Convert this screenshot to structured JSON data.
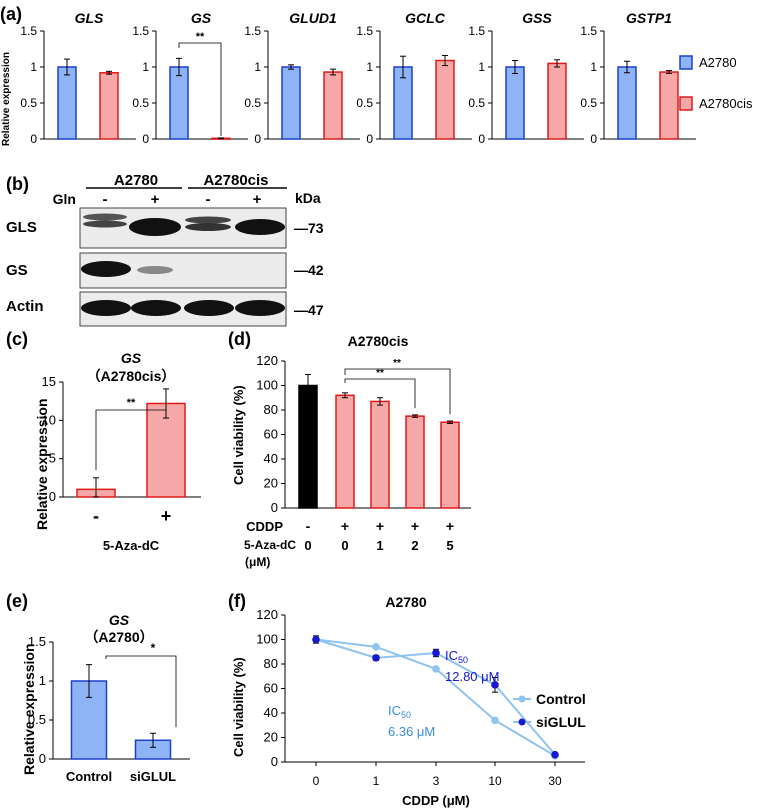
{
  "panel_labels": {
    "a": "(a)",
    "b": "(b)",
    "c": "(c)",
    "d": "(d)",
    "e": "(e)",
    "f": "(f)"
  },
  "colors": {
    "blue_fill": "#8fb4f5",
    "blue_edge": "#1f3fcf",
    "red_fill": "#f6a8a8",
    "red_edge": "#e01a1a",
    "black": "#000000",
    "control_line": "#8fc3f0",
    "siglul_line": "#1818d0"
  },
  "panel_a": {
    "ylabel": "Relative expression",
    "legend": [
      {
        "name": "A2780",
        "color": "blue"
      },
      {
        "name": "A2780cis",
        "color": "red"
      }
    ],
    "significance_gs": "**"
  },
  "panel_b": {
    "col_groups": [
      "A2780",
      "A2780cis"
    ],
    "gln_label": "Gln",
    "lane_signs": [
      "-",
      "+",
      "-",
      "+"
    ],
    "kda_label": "kDa",
    "rows": [
      {
        "name": "GLS",
        "kda": "—73"
      },
      {
        "name": "GS",
        "kda": "—42"
      },
      {
        "name": "Actin",
        "kda": "—47"
      }
    ]
  },
  "panel_c": {
    "title_gene": "GS",
    "title_line": "（A2780cis）",
    "significance": "**"
  },
  "panel_d": {
    "title": "A2780cis",
    "cddp_label": "CDDP",
    "aza_label": "5-Aza-dC",
    "unit_label": "(μM)",
    "cddp_signs": [
      "-",
      "+",
      "+",
      "+",
      "+"
    ],
    "aza_doses": [
      "0",
      "0",
      "1",
      "2",
      "5"
    ],
    "significance": [
      "**",
      "**"
    ]
  },
  "panel_e": {
    "title_gene": "GS",
    "title_line": "（A2780）",
    "significance": "*"
  },
  "panel_f": {
    "title": "A2780",
    "ic50_siglul_label": "IC50",
    "ic50_siglul_value": "12.80 μM",
    "ic50_control_label": "IC50",
    "ic50_control_value": "6.36 μM"
  },
  "chart_data": [
    {
      "panel": "a",
      "type": "bar",
      "ylabel": "Relative expression",
      "ylim": [
        0,
        1.5
      ],
      "yticks": [
        "0",
        "0.5",
        "1",
        "1.5"
      ],
      "groups": [
        {
          "gene": "GLS",
          "values": [
            1.0,
            0.92
          ],
          "errors": [
            0.11,
            0.02
          ]
        },
        {
          "gene": "GS",
          "values": [
            1.0,
            0.01
          ],
          "errors": [
            0.12,
            0.005
          ]
        },
        {
          "gene": "GLUD1",
          "values": [
            1.0,
            0.93
          ],
          "errors": [
            0.03,
            0.04
          ]
        },
        {
          "gene": "GCLC",
          "values": [
            1.0,
            1.09
          ],
          "errors": [
            0.15,
            0.07
          ]
        },
        {
          "gene": "GSS",
          "values": [
            1.0,
            1.05
          ],
          "errors": [
            0.09,
            0.05
          ]
        },
        {
          "gene": "GSTP1",
          "values": [
            1.0,
            0.93
          ],
          "errors": [
            0.08,
            0.02
          ]
        }
      ],
      "series": [
        {
          "name": "A2780"
        },
        {
          "name": "A2780cis"
        }
      ]
    },
    {
      "panel": "c",
      "type": "bar",
      "title": "GS（A2780cis）",
      "categories": [
        "-",
        "+"
      ],
      "xlabel": "5-Aza-dC",
      "ylabel": "Relative expression",
      "values": [
        1.0,
        12.2
      ],
      "errors": [
        1.5,
        1.9
      ],
      "ylim": [
        0,
        15
      ],
      "yticks": [
        "0",
        "5",
        "10",
        "15"
      ]
    },
    {
      "panel": "d",
      "type": "bar",
      "title": "A2780cis",
      "ylabel": "Cell viability (%)",
      "values": [
        100,
        92,
        87,
        75,
        70
      ],
      "errors": [
        9,
        2,
        3,
        1,
        1
      ],
      "ylim": [
        0,
        120
      ],
      "yticks": [
        "0",
        "20",
        "40",
        "60",
        "80",
        "100",
        "120"
      ]
    },
    {
      "panel": "e",
      "type": "bar",
      "title": "GS（A2780）",
      "categories": [
        "Control",
        "siGLUL"
      ],
      "ylabel": "Relative expression",
      "values": [
        1.0,
        0.24
      ],
      "errors": [
        0.21,
        0.09
      ],
      "ylim": [
        0,
        1.5
      ],
      "yticks": [
        "0",
        "0.5",
        "1",
        "1.5"
      ]
    },
    {
      "panel": "f",
      "type": "line",
      "title": "A2780",
      "xlabel": "CDDP (μM)",
      "ylabel": "Cell viability (%)",
      "x": [
        "0",
        "1",
        "3",
        "10",
        "30"
      ],
      "ylim": [
        0,
        120
      ],
      "yticks": [
        "0",
        "20",
        "40",
        "60",
        "80",
        "100",
        "120"
      ],
      "series": [
        {
          "name": "Control",
          "values": [
            100,
            94,
            76,
            34,
            5
          ],
          "errors": [
            0,
            0,
            0,
            0,
            0
          ]
        },
        {
          "name": "siGLUL",
          "values": [
            100,
            85,
            89,
            63,
            6
          ],
          "errors": [
            3,
            2,
            3,
            6,
            1
          ]
        }
      ]
    }
  ]
}
